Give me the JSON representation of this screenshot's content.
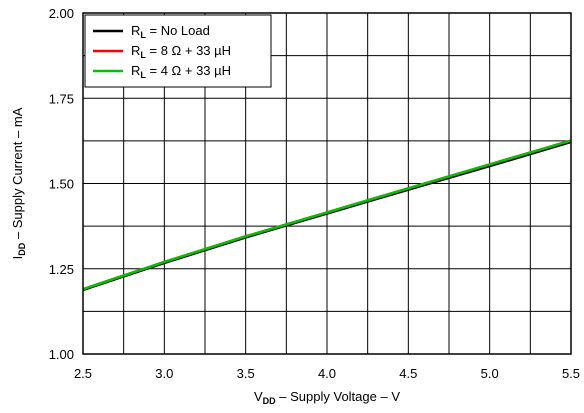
{
  "chart_data": {
    "type": "line",
    "x_axis": {
      "label_main": "V",
      "label_sub": "DD",
      "label_rest": " – Supply Voltage – V",
      "range": [
        2.5,
        5.5
      ],
      "ticks": [
        "2.5",
        "3.0",
        "3.5",
        "4.0",
        "4.5",
        "5.0",
        "5.5"
      ],
      "minor_step": 0.25
    },
    "y_axis": {
      "label_main": "I",
      "label_sub": "DD",
      "label_rest": " – Supply Current – mA",
      "range": [
        1.0,
        2.0
      ],
      "ticks": [
        "1.00",
        "1.25",
        "1.50",
        "1.75",
        "2.00"
      ],
      "minor_step": 0.125
    },
    "grid": true,
    "legend": {
      "placement": "top-left",
      "entries": [
        {
          "prefix": "R",
          "sub": "L",
          "rest": " = No Load",
          "color": "#000000"
        },
        {
          "prefix": "R",
          "sub": "L",
          "rest": " = 8 Ω + 33 µH",
          "color": "#ff0000"
        },
        {
          "prefix": "R",
          "sub": "L",
          "rest": " = 4 Ω + 33 µH",
          "color": "#00c000"
        }
      ]
    },
    "series": [
      {
        "color": "#000000",
        "x": [
          2.5,
          3.0,
          3.5,
          4.0,
          4.5,
          5.0,
          5.5
        ],
        "y": [
          1.188,
          1.267,
          1.342,
          1.412,
          1.482,
          1.551,
          1.622
        ]
      },
      {
        "color": "#ff0000",
        "x": [
          2.5,
          3.0,
          3.5,
          4.0,
          4.5,
          5.0,
          5.5
        ],
        "y": [
          1.19,
          1.27,
          1.345,
          1.415,
          1.486,
          1.556,
          1.626
        ]
      },
      {
        "color": "#00c000",
        "x": [
          2.5,
          3.0,
          3.5,
          4.0,
          4.5,
          5.0,
          5.5
        ],
        "y": [
          1.19,
          1.27,
          1.345,
          1.415,
          1.486,
          1.556,
          1.626
        ]
      }
    ]
  }
}
